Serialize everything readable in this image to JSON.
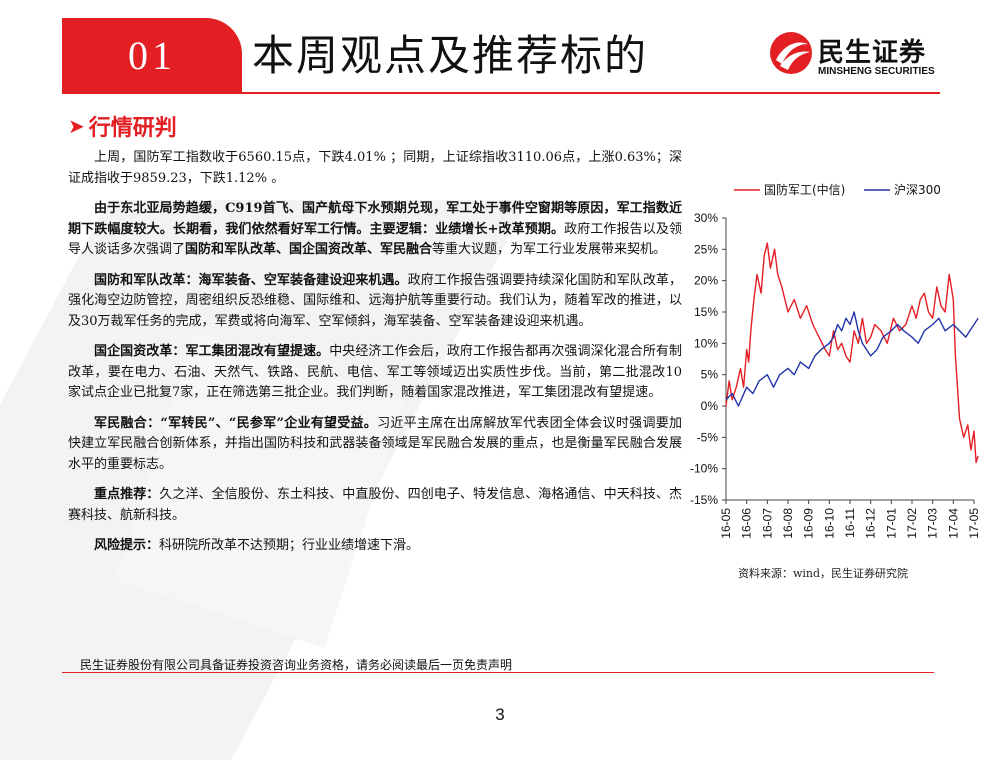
{
  "header": {
    "slide_number": "01",
    "title": "本周观点及推荐标的",
    "logo_cn": "民生证券",
    "logo_en": "MINSHENG SECURITIES",
    "accent": "#e41f24"
  },
  "section": {
    "label": "行情研判",
    "icon": "triangle-right-icon"
  },
  "paragraphs": [
    {
      "segments": [
        {
          "t": "上周，国防军工指数收于6560.15点，下跌4.01% ；同期，上证综指收3110.06点，上涨0.63%；深证成指收于9859.23，下跌1.12% 。",
          "b": false
        }
      ]
    },
    {
      "segments": [
        {
          "t": "由于东北亚局势趋缓，C919首飞、国产航母下水预期兑现，军工处于事件空窗期等原因，军工指数近期下跌幅度较大。长期看，我们依然看好军工行情。主要逻辑：业绩增长+改革预期。",
          "b": true
        },
        {
          "t": "政府工作报告以及领导人谈话多次强调了",
          "b": false
        },
        {
          "t": "国防和军队改革、国企国资改革、军民融合",
          "b": true
        },
        {
          "t": "等重大议题，为军工行业发展带来契机。",
          "b": false
        }
      ]
    },
    {
      "segments": [
        {
          "t": "国防和军队改革：海军装备、空军装备建设迎来机遇。",
          "b": true
        },
        {
          "t": "政府工作报告强调要持续深化国防和军队改革，强化海空边防管控，周密组织反恐维稳、国际维和、远海护航等重要行动。我们认为，随着军改的推进，以及30万裁军任务的完成，军费或将向海军、空军倾斜，海军装备、空军装备建设迎来机遇。",
          "b": false
        }
      ]
    },
    {
      "segments": [
        {
          "t": "国企国资改革：军工集团混改有望提速。",
          "b": true
        },
        {
          "t": "中央经济工作会后，政府工作报告都再次强调深化混合所有制改革，要在电力、石油、天然气、铁路、民航、电信、军工等领域迈出实质性步伐。当前，第二批混改10家试点企业已批复7家，正在筛选第三批企业。我们判断，随着国家混改推进，军工集团混改有望提速。",
          "b": false
        }
      ]
    },
    {
      "segments": [
        {
          "t": "军民融合：“军转民”、“民参军”企业有望受益。",
          "b": true
        },
        {
          "t": "习近平主席在出席解放军代表团全体会议时强调要加快建立军民融合创新体系，并指出国防科技和武器装备领域是军民融合发展的重点，也是衡量军民融合发展水平的重要标志。",
          "b": false
        }
      ]
    },
    {
      "segments": [
        {
          "t": "重点推荐：",
          "b": true
        },
        {
          "t": "久之洋、全信股份、东土科技、中直股份、四创电子、特发信息、海格通信、中天科技、杰赛科技、航新科技。",
          "b": false
        }
      ]
    },
    {
      "segments": [
        {
          "t": "风险提示：",
          "b": true
        },
        {
          "t": "科研院所改革不达预期；行业业绩增速下滑。",
          "b": false
        }
      ]
    }
  ],
  "chart_data": {
    "type": "line",
    "title": "",
    "xlabel": "",
    "ylabel": "",
    "x_ticks": [
      "16-05",
      "16-06",
      "16-07",
      "16-08",
      "16-09",
      "16-10",
      "16-11",
      "16-12",
      "17-01",
      "17-02",
      "17-03",
      "17-04",
      "17-05"
    ],
    "y_ticks": [
      "30%",
      "25%",
      "20%",
      "15%",
      "10%",
      "5%",
      "0%",
      "-5%",
      "-10%",
      "-15%"
    ],
    "ylim": [
      -15,
      30
    ],
    "legend_position": "top",
    "grid": false,
    "series": [
      {
        "name": "国防军工(中信)",
        "color": "#e41f24",
        "x": [
          0,
          0.15,
          0.3,
          0.5,
          0.7,
          0.85,
          1.0,
          1.1,
          1.2,
          1.35,
          1.5,
          1.7,
          1.85,
          2.0,
          2.15,
          2.35,
          2.5,
          2.7,
          3.0,
          3.3,
          3.6,
          3.9,
          4.2,
          4.5,
          4.8,
          5.0,
          5.2,
          5.4,
          5.6,
          5.8,
          6.0,
          6.2,
          6.4,
          6.6,
          6.8,
          7.0,
          7.2,
          7.5,
          7.8,
          8.1,
          8.4,
          8.7,
          9.0,
          9.2,
          9.4,
          9.6,
          9.8,
          10.0,
          10.2,
          10.4,
          10.6,
          10.8,
          11.0,
          11.1,
          11.2,
          11.3,
          11.5,
          11.7,
          11.85,
          12.0,
          12.1,
          12.2
        ],
        "y": [
          0,
          4,
          1,
          3,
          6,
          3,
          9,
          7,
          12,
          17,
          21,
          18,
          24,
          26,
          22,
          25,
          21,
          19,
          15,
          17,
          14,
          16,
          13,
          11,
          9,
          8,
          12,
          9,
          10,
          8,
          7,
          12,
          10,
          14,
          10,
          11,
          13,
          12,
          10,
          14,
          12,
          13,
          16,
          14,
          17,
          18,
          15,
          14,
          19,
          16,
          15,
          21,
          17,
          8,
          3,
          -2,
          -5,
          -3,
          -7,
          -4,
          -9,
          -8
        ]
      },
      {
        "name": "沪深300",
        "color": "#2233aa",
        "x": [
          0,
          0.3,
          0.6,
          1.0,
          1.3,
          1.6,
          2.0,
          2.3,
          2.6,
          3.0,
          3.3,
          3.6,
          4.0,
          4.3,
          4.6,
          5.0,
          5.2,
          5.4,
          5.6,
          5.8,
          6.0,
          6.2,
          6.4,
          6.6,
          6.8,
          7.0,
          7.3,
          7.6,
          8.0,
          8.3,
          8.6,
          9.0,
          9.3,
          9.6,
          10.0,
          10.3,
          10.6,
          11.0,
          11.3,
          11.6,
          12.0,
          12.2
        ],
        "y": [
          1,
          2,
          0,
          3,
          2,
          4,
          5,
          3,
          5,
          6,
          5,
          7,
          6,
          8,
          9,
          10,
          11,
          13,
          12,
          14,
          13,
          15,
          12,
          10,
          9,
          8,
          9,
          11,
          12,
          13,
          12,
          11,
          10,
          12,
          13,
          14,
          12,
          13,
          12,
          11,
          13,
          14
        ]
      }
    ]
  },
  "chart_source": "资料来源：wind，民生证券研究院",
  "footer": {
    "disclaimer": "民生证券股份有限公司具备证券投资咨询业务资格，请务必阅读最后一页免责声明",
    "page_number": "3"
  }
}
